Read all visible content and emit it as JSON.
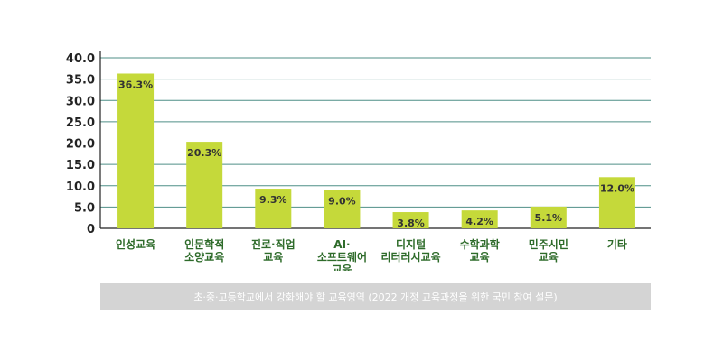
{
  "colors": {
    "bar": "#c5d93a",
    "grid": "#4f8f87",
    "category_text": "#2e6b2a",
    "axis": "#222222",
    "caption_bg": "#d4d4d4"
  },
  "chart_data": {
    "type": "bar",
    "categories": [
      [
        "인성교육"
      ],
      [
        "인문학적",
        "소양교육"
      ],
      [
        "진로·직업",
        "교육"
      ],
      [
        "AI·",
        "소프트웨어",
        "교육"
      ],
      [
        "디지털",
        "리터러시교육"
      ],
      [
        "수학과학",
        "교육"
      ],
      [
        "민주시민",
        "교육"
      ],
      [
        "기타"
      ]
    ],
    "values": [
      36.3,
      20.3,
      9.3,
      9.0,
      3.8,
      4.2,
      5.1,
      12.0
    ],
    "value_labels": [
      "36.3%",
      "20.3%",
      "9.3%",
      "9.0%",
      "3.8%",
      "4.2%",
      "5.1%",
      "12.0%"
    ],
    "yticks": [
      "0",
      "5.0",
      "10.0",
      "15.0",
      "20.0",
      "25.0",
      "30.0",
      "35.0",
      "40.0"
    ],
    "ylim": [
      0,
      40
    ],
    "grid": true
  },
  "caption": "초·중·고등학교에서 강화해야 할 교육영역 (2022 개정 교육과정을 위한 국민 참여 설문)"
}
